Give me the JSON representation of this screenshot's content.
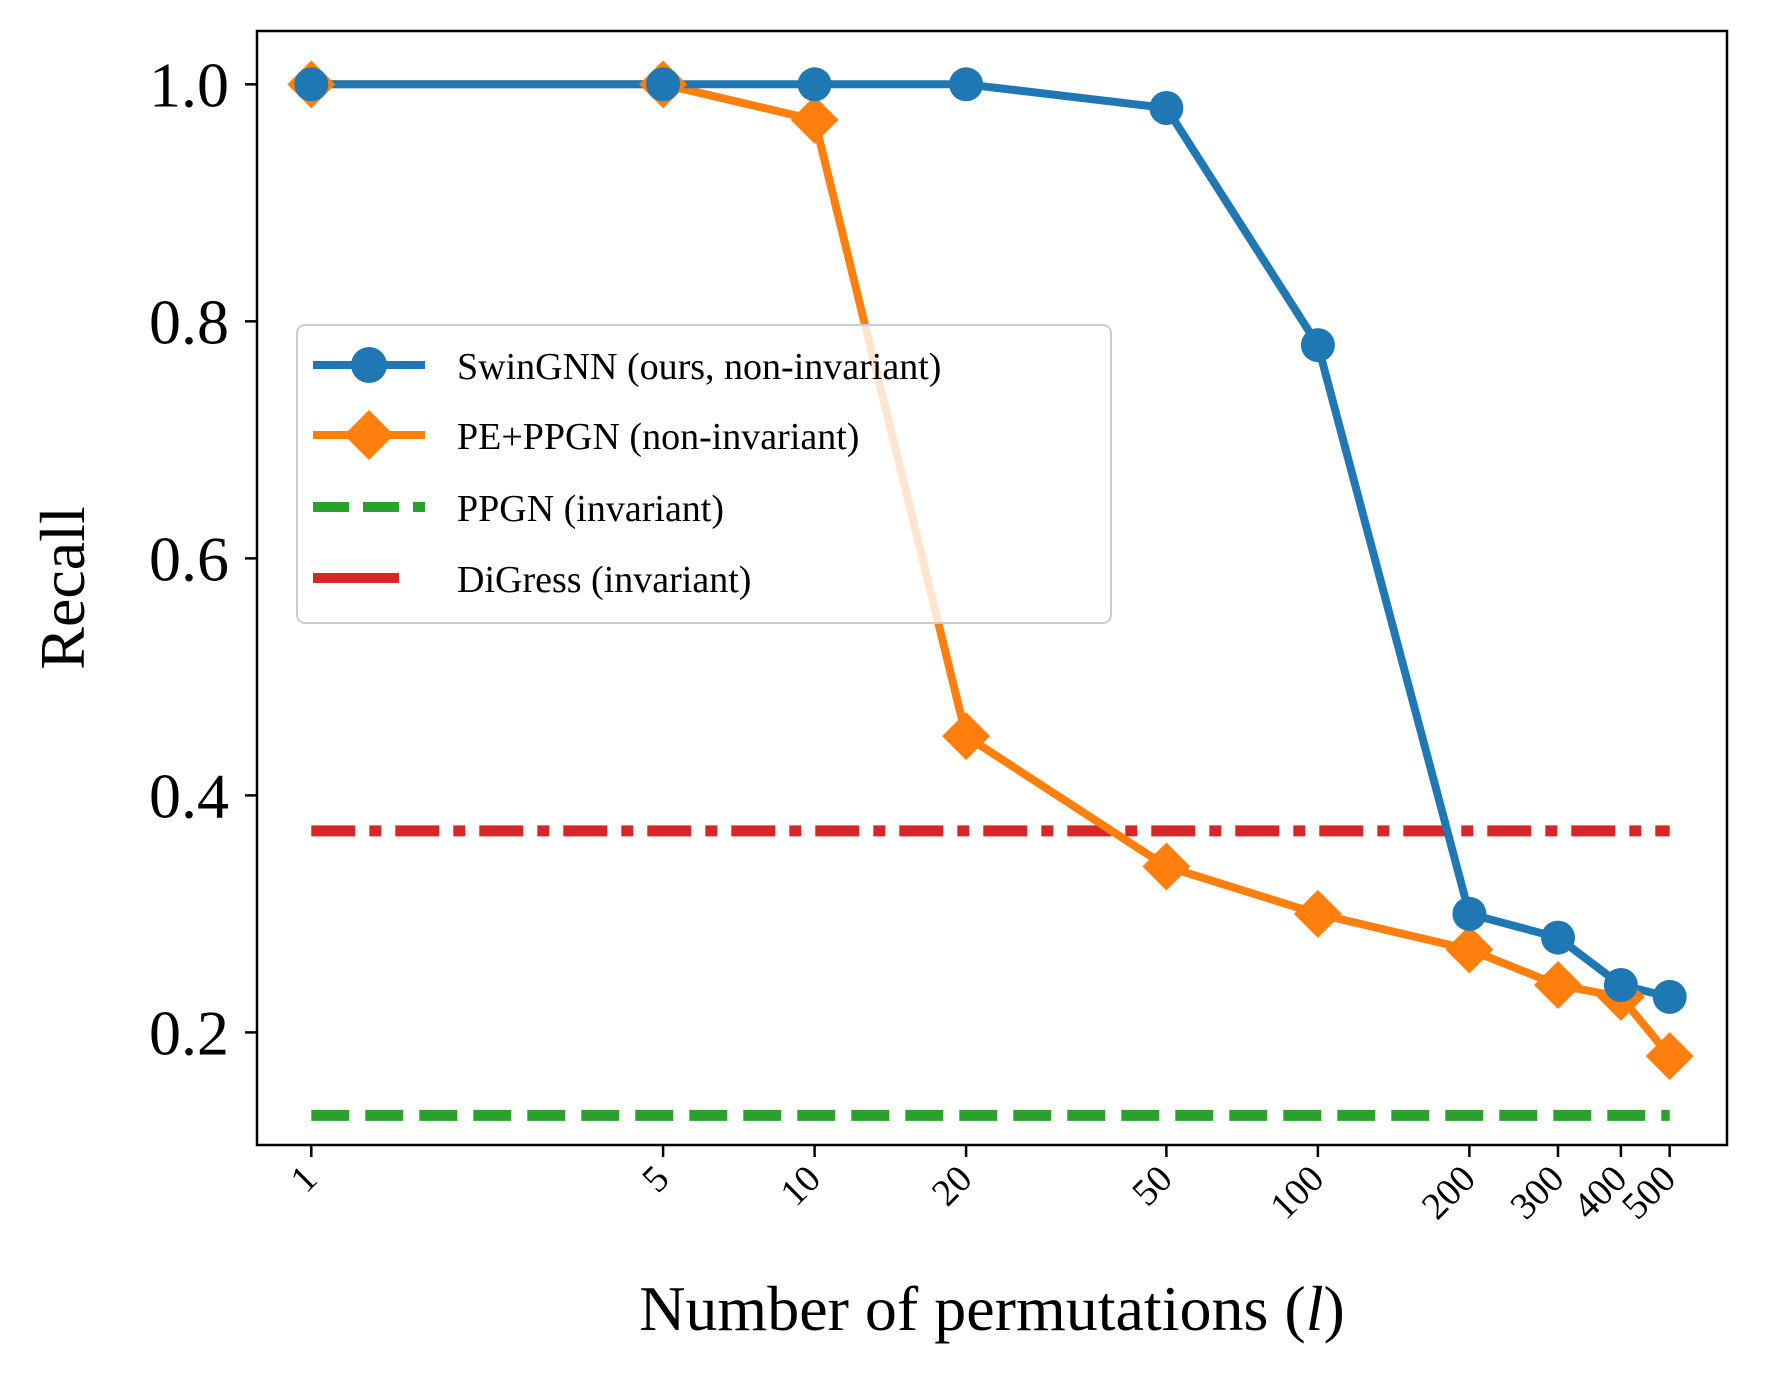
{
  "chart_data": {
    "type": "line",
    "title": "",
    "xlabel_main": "Number of permutations (",
    "xlabel_var": "l",
    "xlabel_close": ")",
    "ylabel": "Recall",
    "x_scale": "log",
    "xlim": [
      0.78,
      650
    ],
    "ylim": [
      0.105,
      1.045
    ],
    "x_ticks": [
      1,
      5,
      10,
      20,
      50,
      100,
      200,
      300,
      400,
      500
    ],
    "x_tick_labels": [
      "1",
      "5",
      "10",
      "20",
      "50",
      "100",
      "200",
      "300",
      "400",
      "500"
    ],
    "y_ticks": [
      0.2,
      0.4,
      0.6,
      0.8,
      1.0
    ],
    "y_tick_labels": [
      "0.2",
      "0.4",
      "0.6",
      "0.8",
      "1.0"
    ],
    "legend_position": "center-left",
    "grid": false,
    "series": [
      {
        "name": "SwinGNN (ours, non-invariant)",
        "color": "#1f77b4",
        "marker": "circle",
        "linestyle": "solid",
        "x": [
          1,
          5,
          10,
          20,
          50,
          100,
          200,
          300,
          400,
          500
        ],
        "y": [
          1.0,
          1.0,
          1.0,
          1.0,
          0.98,
          0.78,
          0.3,
          0.28,
          0.24,
          0.23
        ]
      },
      {
        "name": "PE+PPGN (non-invariant)",
        "color": "#ff7f0e",
        "marker": "diamond",
        "linestyle": "solid",
        "x": [
          1,
          5,
          10,
          20,
          50,
          100,
          200,
          300,
          400,
          500
        ],
        "y": [
          1.0,
          1.0,
          0.97,
          0.45,
          0.34,
          0.3,
          0.27,
          0.24,
          0.23,
          0.18
        ]
      },
      {
        "name": "PPGN (invariant)",
        "color": "#2ca02c",
        "marker": "none",
        "linestyle": "dashed",
        "x": [
          1,
          500
        ],
        "y": [
          0.13,
          0.13
        ]
      },
      {
        "name": "DiGress (invariant)",
        "color": "#d62728",
        "marker": "none",
        "linestyle": "dashdot",
        "x": [
          1,
          500
        ],
        "y": [
          0.37,
          0.37
        ]
      }
    ]
  }
}
